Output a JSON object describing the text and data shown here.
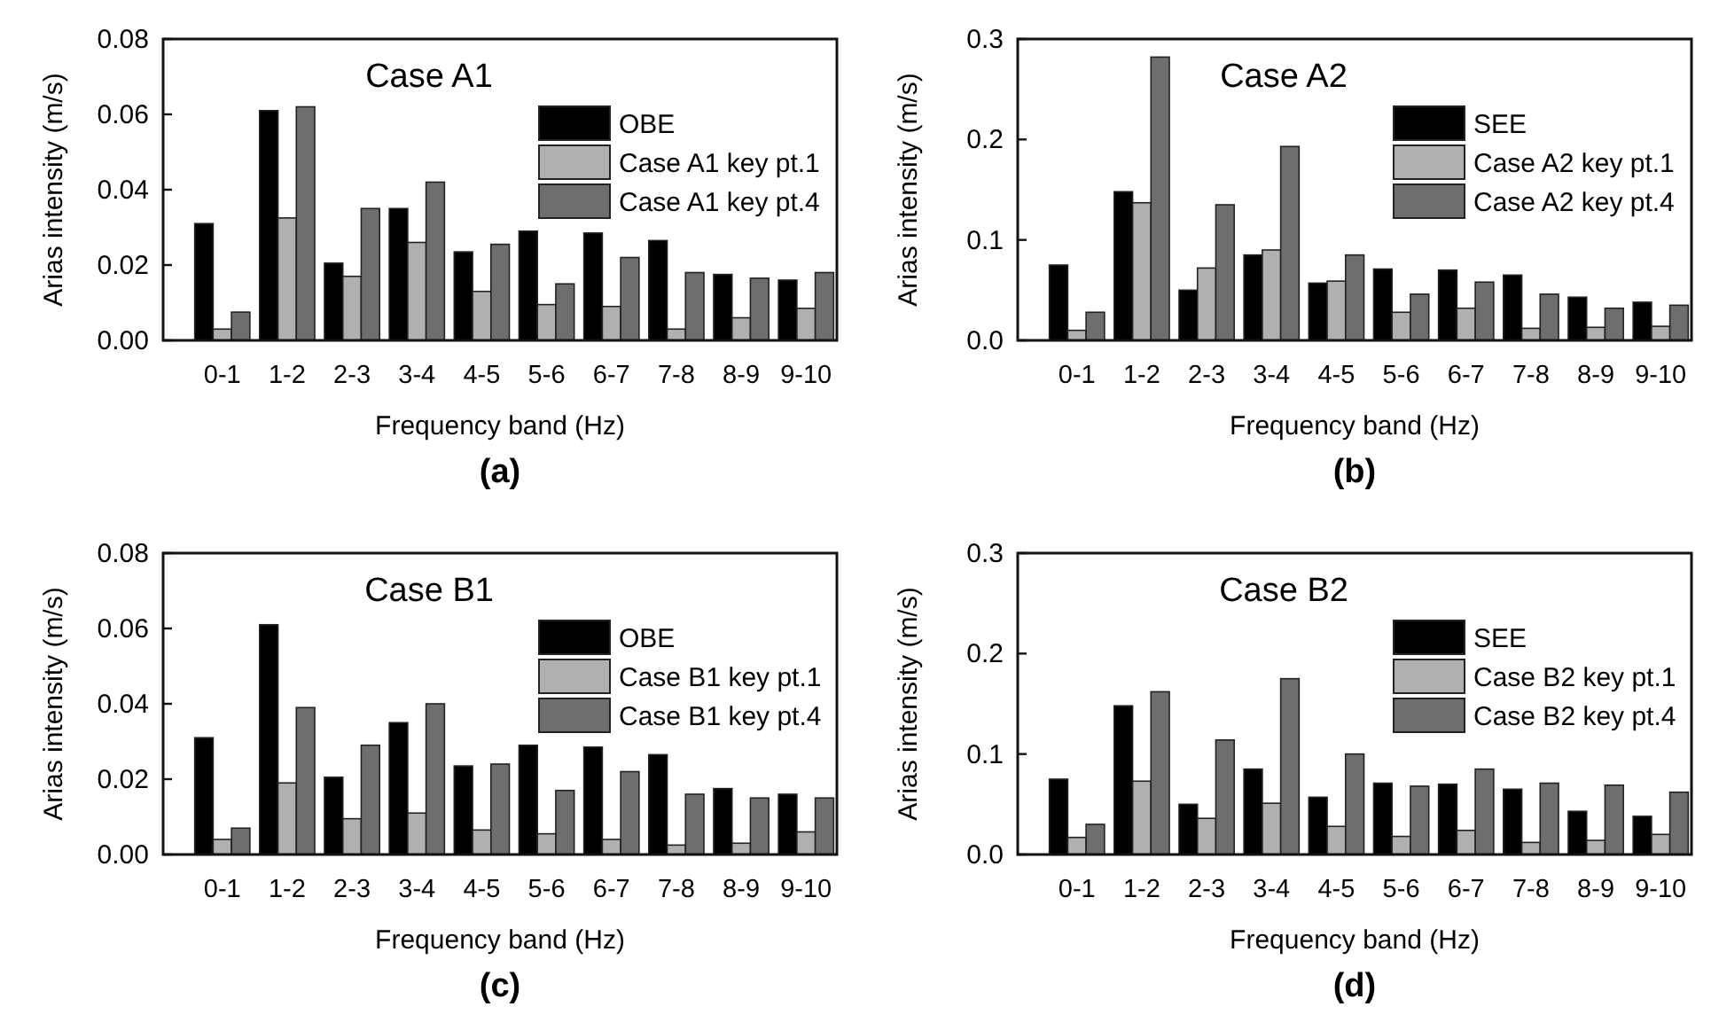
{
  "chart_data": [
    {
      "type": "bar",
      "title": "Case A1",
      "xlabel": "Frequency band (Hz)",
      "ylabel": "Arias intensity (m/s)",
      "annotations": [
        "(a)"
      ],
      "categories": [
        "0-1",
        "1-2",
        "2-3",
        "3-4",
        "4-5",
        "5-6",
        "6-7",
        "7-8",
        "8-9",
        "9-10"
      ],
      "ylim": [
        0,
        0.08
      ],
      "yticks": [
        {
          "value": 0,
          "label": "0.00"
        },
        {
          "value": 0.02,
          "label": "0.02"
        },
        {
          "value": 0.04,
          "label": "0.04"
        },
        {
          "value": 0.06,
          "label": "0.06"
        },
        {
          "value": 0.08,
          "label": "0.08"
        }
      ],
      "legend": "top right",
      "grid": false,
      "series": [
        {
          "name": "OBE",
          "color": "#000000",
          "values": [
            0.031,
            0.061,
            0.0205,
            0.035,
            0.0235,
            0.029,
            0.0285,
            0.0265,
            0.0175,
            0.016
          ]
        },
        {
          "name": "Case A1 key pt.1",
          "color": "#b0b0b0",
          "values": [
            0.003,
            0.0325,
            0.017,
            0.026,
            0.013,
            0.0095,
            0.009,
            0.003,
            0.006,
            0.0085
          ]
        },
        {
          "name": "Case A1 key pt.4",
          "color": "#6e6e6e",
          "values": [
            0.0075,
            0.062,
            0.035,
            0.042,
            0.0255,
            0.015,
            0.022,
            0.018,
            0.0165,
            0.018
          ]
        }
      ]
    },
    {
      "type": "bar",
      "title": "Case A2",
      "xlabel": "Frequency band (Hz)",
      "ylabel": "Arias intensity (m/s)",
      "annotations": [
        "(b)"
      ],
      "categories": [
        "0-1",
        "1-2",
        "2-3",
        "3-4",
        "4-5",
        "5-6",
        "6-7",
        "7-8",
        "8-9",
        "9-10"
      ],
      "ylim": [
        0,
        0.3
      ],
      "yticks": [
        {
          "value": 0,
          "label": "0.0"
        },
        0.1,
        0.2,
        0.3
      ],
      "legend": "top right",
      "grid": false,
      "series": [
        {
          "name": "SEE",
          "color": "#000000",
          "values": [
            0.075,
            0.148,
            0.05,
            0.085,
            0.057,
            0.071,
            0.07,
            0.065,
            0.043,
            0.038
          ]
        },
        {
          "name": "Case A2 key pt.1",
          "color": "#b0b0b0",
          "values": [
            0.01,
            0.137,
            0.072,
            0.09,
            0.059,
            0.028,
            0.032,
            0.012,
            0.013,
            0.014
          ]
        },
        {
          "name": "Case A2 key pt.4",
          "color": "#6e6e6e",
          "values": [
            0.028,
            0.282,
            0.135,
            0.193,
            0.085,
            0.046,
            0.058,
            0.046,
            0.032,
            0.035
          ]
        }
      ]
    },
    {
      "type": "bar",
      "title": "Case B1",
      "xlabel": "Frequency band (Hz)",
      "ylabel": "Arias intensity (m/s)",
      "annotations": [
        "(c)"
      ],
      "categories": [
        "0-1",
        "1-2",
        "2-3",
        "3-4",
        "4-5",
        "5-6",
        "6-7",
        "7-8",
        "8-9",
        "9-10"
      ],
      "ylim": [
        0,
        0.08
      ],
      "yticks": [
        {
          "value": 0,
          "label": "0.00"
        },
        {
          "value": 0.02,
          "label": "0.02"
        },
        {
          "value": 0.04,
          "label": "0.04"
        },
        {
          "value": 0.06,
          "label": "0.06"
        },
        {
          "value": 0.08,
          "label": "0.08"
        }
      ],
      "legend": "top right",
      "grid": false,
      "series": [
        {
          "name": "OBE",
          "color": "#000000",
          "values": [
            0.031,
            0.061,
            0.0205,
            0.035,
            0.0235,
            0.029,
            0.0285,
            0.0265,
            0.0175,
            0.016
          ]
        },
        {
          "name": "Case B1 key pt.1",
          "color": "#b0b0b0",
          "values": [
            0.004,
            0.019,
            0.0095,
            0.011,
            0.0065,
            0.0055,
            0.004,
            0.0025,
            0.003,
            0.006
          ]
        },
        {
          "name": "Case B1 key pt.4",
          "color": "#6e6e6e",
          "values": [
            0.007,
            0.039,
            0.029,
            0.04,
            0.024,
            0.017,
            0.022,
            0.016,
            0.015,
            0.015
          ]
        }
      ]
    },
    {
      "type": "bar",
      "title": "Case B2",
      "xlabel": "Frequency band (Hz)",
      "ylabel": "Arias intensity (m/s)",
      "annotations": [
        "(d)"
      ],
      "categories": [
        "0-1",
        "1-2",
        "2-3",
        "3-4",
        "4-5",
        "5-6",
        "6-7",
        "7-8",
        "8-9",
        "9-10"
      ],
      "ylim": [
        0,
        0.3
      ],
      "yticks": [
        {
          "value": 0,
          "label": "0.0"
        },
        0.1,
        0.2,
        0.3
      ],
      "legend": "top right",
      "grid": false,
      "series": [
        {
          "name": "SEE",
          "color": "#000000",
          "values": [
            0.075,
            0.148,
            0.05,
            0.085,
            0.057,
            0.071,
            0.07,
            0.065,
            0.043,
            0.038
          ]
        },
        {
          "name": "Case B2 key pt.1",
          "color": "#b0b0b0",
          "values": [
            0.017,
            0.073,
            0.036,
            0.051,
            0.028,
            0.018,
            0.024,
            0.012,
            0.014,
            0.02
          ]
        },
        {
          "name": "Case B2 key pt.4",
          "color": "#6e6e6e",
          "values": [
            0.03,
            0.162,
            0.114,
            0.175,
            0.1,
            0.068,
            0.085,
            0.071,
            0.069,
            0.062
          ]
        }
      ]
    }
  ]
}
